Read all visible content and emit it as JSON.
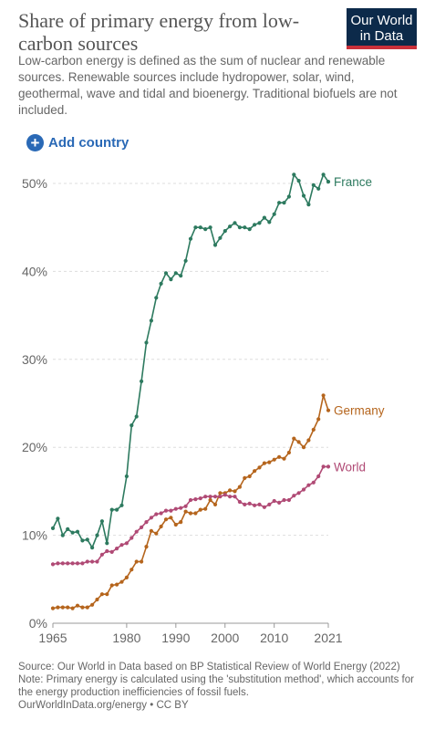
{
  "header": {
    "title": "Share of primary energy from low-carbon sources",
    "subtitle": "Low-carbon energy is defined as the sum of nuclear and renewable sources. Renewable sources include hydropower, solar, wind, geothermal, wave and tidal and bioenergy. Traditional biofuels are not included.",
    "logo_line1": "Our World",
    "logo_line2": "in Data"
  },
  "controls": {
    "add_country_label": "Add country",
    "add_icon": "plus-circle-icon"
  },
  "colors": {
    "France": "#2d7a5f",
    "Germany": "#b5651d",
    "World": "#b04a75",
    "logo_bg": "#0c2a4a",
    "logo_accent": "#c9303a",
    "link": "#2a69b6"
  },
  "chart_data": {
    "type": "line",
    "y_ticks": [
      "0%",
      "10%",
      "20%",
      "30%",
      "40%",
      "50%"
    ],
    "x_ticks": [
      "1965",
      "1980",
      "1990",
      "2000",
      "2010",
      "2021"
    ],
    "ylim": [
      0,
      50
    ],
    "xlim": [
      1965,
      2021
    ],
    "grid": true,
    "legend": "line-end labels",
    "series": [
      {
        "name": "France",
        "x_start": 1965,
        "values": [
          10.8,
          11.9,
          10,
          10.7,
          10.3,
          10.4,
          9.4,
          9.5,
          8.6,
          10,
          11.6,
          9.1,
          12.9,
          12.9,
          13.4,
          16.7,
          22.5,
          23.5,
          27.5,
          31.9,
          34.4,
          37,
          38.6,
          39.8,
          39.1,
          39.8,
          39.5,
          41.2,
          43.7,
          45,
          45,
          44.8,
          45,
          43,
          43.8,
          44.6,
          45.1,
          45.5,
          45,
          45,
          44.8,
          45.3,
          45.5,
          46.1,
          45.6,
          46.5,
          47.8,
          47.8,
          48.5,
          51,
          50.3,
          48.6,
          47.6,
          49.8,
          49.4,
          51,
          50.2
        ]
      },
      {
        "name": "Germany",
        "x_start": 1965,
        "values": [
          1.7,
          1.8,
          1.8,
          1.8,
          1.7,
          2,
          1.8,
          1.8,
          2.1,
          2.7,
          3.3,
          3.3,
          4.3,
          4.4,
          4.7,
          5.2,
          6.1,
          7,
          7,
          8.7,
          10.5,
          10.2,
          11,
          11.8,
          12,
          11.2,
          11.5,
          12.7,
          12.5,
          12.5,
          12.9,
          13,
          14,
          13.5,
          14.8,
          14.8,
          15.1,
          15,
          15.5,
          16.5,
          16.7,
          17.3,
          17.7,
          18.2,
          18.3,
          18.6,
          18.9,
          18.7,
          19.4,
          21,
          20.6,
          20,
          20.8,
          22,
          23.2,
          25.9,
          24.2
        ]
      },
      {
        "name": "World",
        "x_start": 1965,
        "values": [
          6.7,
          6.8,
          6.8,
          6.8,
          6.8,
          6.8,
          6.8,
          7,
          7,
          7,
          7.8,
          8.2,
          8.1,
          8.5,
          8.9,
          9.1,
          9.7,
          10.4,
          10.9,
          11.5,
          12,
          12.4,
          12.5,
          12.8,
          12.8,
          13,
          13.1,
          13.3,
          14,
          14.1,
          14.2,
          14.4,
          14.4,
          14.4,
          14.4,
          14.6,
          14.4,
          14.4,
          13.8,
          13.5,
          13.6,
          13.4,
          13.5,
          13.2,
          13.5,
          13.9,
          13.7,
          14,
          14,
          14.5,
          14.8,
          15.2,
          15.7,
          16,
          16.7,
          17.8,
          17.8
        ]
      }
    ]
  },
  "footer": {
    "source": "Source: Our World in Data based on BP Statistical Review of World Energy (2022)",
    "note": "Note: Primary energy is calculated using the 'substitution method', which accounts for the energy production inefficiencies of fossil fuels.",
    "url": "OurWorldInData.org/energy • CC BY"
  }
}
